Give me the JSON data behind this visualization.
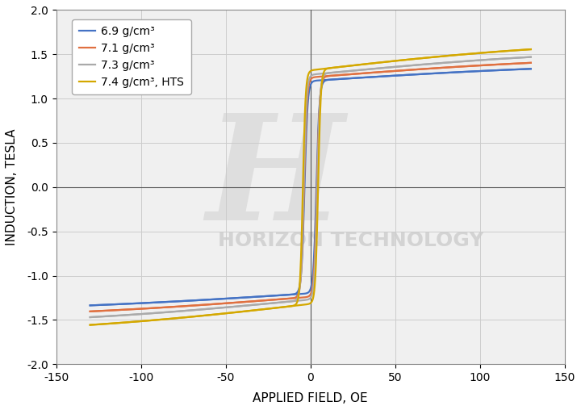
{
  "title": "",
  "xlabel": "APPLIED FIELD, OE",
  "ylabel": "INDUCTION, TESLA",
  "xlim": [
    -150,
    150
  ],
  "ylim": [
    -2.0,
    2.0
  ],
  "xticks": [
    -150,
    -100,
    -50,
    0,
    50,
    100,
    150
  ],
  "yticks": [
    -2.0,
    -1.5,
    -1.0,
    -0.5,
    0.0,
    0.5,
    1.0,
    1.5,
    2.0
  ],
  "grid_color": "#cccccc",
  "background_color": "#f0f0f0",
  "series": [
    {
      "label": "6.9 g/cm³",
      "color": "#4472c4",
      "Bsat": 1.42,
      "Br": 1.2,
      "Hc": 3.5,
      "k_steep": 1.8,
      "k_slow": 180.0
    },
    {
      "label": "7.1 g/cm³",
      "color": "#e07040",
      "Bsat": 1.5,
      "Br": 1.24,
      "Hc": 3.8,
      "k_steep": 1.7,
      "k_slow": 175.0
    },
    {
      "label": "7.3 g/cm³",
      "color": "#aaaaaa",
      "Bsat": 1.58,
      "Br": 1.27,
      "Hc": 4.0,
      "k_steep": 1.65,
      "k_slow": 170.0
    },
    {
      "label": "7.4 g/cm³, HTS",
      "color": "#d4a800",
      "Bsat": 1.68,
      "Br": 1.32,
      "Hc": 4.5,
      "k_steep": 1.6,
      "k_slow": 165.0
    }
  ],
  "watermark_text": "HORIZON TECHNOLOGY",
  "watermark_color": "#cccccc",
  "watermark_fontsize": 18,
  "line_width": 1.6,
  "xlabel_fontsize": 11,
  "ylabel_fontsize": 11,
  "tick_fontsize": 10
}
